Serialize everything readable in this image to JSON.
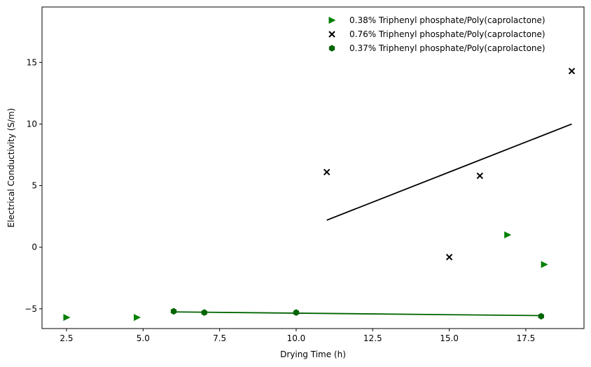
{
  "chart_data": {
    "type": "scatter",
    "xlabel": "Drying Time (h)",
    "ylabel": "Electrical Conductivity (S/m)",
    "xlim": [
      1.7,
      19.4
    ],
    "ylim": [
      -6.6,
      19.5
    ],
    "xticks": [
      2.5,
      5.0,
      7.5,
      10.0,
      12.5,
      15.0,
      17.5
    ],
    "xtick_labels": [
      "2.5",
      "5.0",
      "7.5",
      "10.0",
      "12.5",
      "15.0",
      "17.5"
    ],
    "yticks": [
      -5,
      0,
      5,
      10,
      15
    ],
    "ytick_labels": [
      "−5",
      "0",
      "5",
      "10",
      "15"
    ],
    "grid": false,
    "legend_position": "top-right",
    "series": [
      {
        "name": "0.38% Triphenyl phosphate/Poly(caprolactone)",
        "marker": "triangle-right",
        "color": "#008000",
        "x": [
          2.5,
          4.8,
          16.9,
          18.1
        ],
        "y": [
          -5.7,
          -5.7,
          1.0,
          -1.4
        ]
      },
      {
        "name": "0.76% Triphenyl phosphate/Poly(caprolactone)",
        "marker": "x",
        "color": "#000000",
        "x": [
          11.0,
          15.0,
          16.0,
          19.0
        ],
        "y": [
          6.1,
          -0.8,
          5.8,
          14.3
        ],
        "fit_line": {
          "x": [
            11.0,
            19.0
          ],
          "y": [
            2.2,
            10.0
          ],
          "color": "#000000"
        }
      },
      {
        "name": "0.37% Triphenyl phosphate/Poly(caprolactone)",
        "marker": "hexagon",
        "color": "#006400",
        "x": [
          6.0,
          7.0,
          10.0,
          18.0
        ],
        "y": [
          -5.2,
          -5.3,
          -5.3,
          -5.6
        ],
        "fit_line": {
          "x": [
            6.0,
            18.0
          ],
          "y": [
            -5.25,
            -5.55
          ],
          "color": "#006400"
        }
      }
    ]
  }
}
